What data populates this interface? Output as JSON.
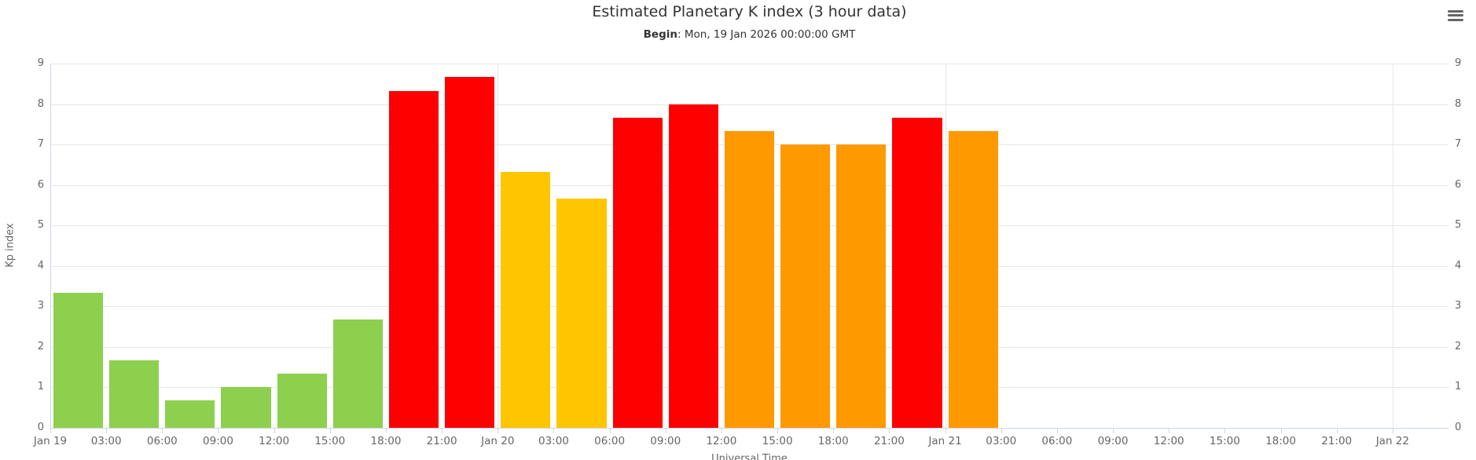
{
  "header": {
    "title": "Estimated Planetary K index (3 hour data)",
    "subtitle_label": "Begin",
    "subtitle_rest": ": Mon, 19 Jan 2026 00:00:00 GMT"
  },
  "menu": {
    "icon": "hamburger-menu-icon"
  },
  "chart_data": {
    "type": "bar",
    "title": "Estimated Planetary K index (3 hour data)",
    "subtitle": "Begin: Mon, 19 Jan 2026 00:00:00 GMT",
    "xlabel": "Universal Time",
    "ylabel": "Kp index",
    "ylim": [
      0,
      9
    ],
    "y_ticks": [
      0,
      1,
      2,
      3,
      4,
      5,
      6,
      7,
      8,
      9
    ],
    "grid": true,
    "legend": false,
    "x_slots_total": 25,
    "x_tick_labels": [
      "Jan 19",
      "03:00",
      "06:00",
      "09:00",
      "12:00",
      "15:00",
      "18:00",
      "21:00",
      "Jan 20",
      "03:00",
      "06:00",
      "09:00",
      "12:00",
      "15:00",
      "18:00",
      "21:00",
      "Jan 21",
      "03:00",
      "06:00",
      "09:00",
      "12:00",
      "15:00",
      "18:00",
      "21:00",
      "Jan 22"
    ],
    "day_boundary_slots": [
      8,
      16,
      24
    ],
    "level_colors": {
      "green": "#8DD04E",
      "yellow": "#FFC600",
      "orange": "#FF9900",
      "red": "#FF0000"
    },
    "bars": [
      {
        "slot": 0,
        "time": "Jan 19 00:00",
        "value": 3.33,
        "level": "green"
      },
      {
        "slot": 1,
        "time": "Jan 19 03:00",
        "value": 1.67,
        "level": "green"
      },
      {
        "slot": 2,
        "time": "Jan 19 06:00",
        "value": 0.67,
        "level": "green"
      },
      {
        "slot": 3,
        "time": "Jan 19 09:00",
        "value": 1.0,
        "level": "green"
      },
      {
        "slot": 4,
        "time": "Jan 19 12:00",
        "value": 1.33,
        "level": "green"
      },
      {
        "slot": 5,
        "time": "Jan 19 15:00",
        "value": 2.67,
        "level": "green"
      },
      {
        "slot": 6,
        "time": "Jan 19 18:00",
        "value": 8.33,
        "level": "red"
      },
      {
        "slot": 7,
        "time": "Jan 19 21:00",
        "value": 8.67,
        "level": "red"
      },
      {
        "slot": 8,
        "time": "Jan 20 00:00",
        "value": 6.33,
        "level": "yellow"
      },
      {
        "slot": 9,
        "time": "Jan 20 03:00",
        "value": 5.67,
        "level": "yellow"
      },
      {
        "slot": 10,
        "time": "Jan 20 06:00",
        "value": 7.67,
        "level": "red"
      },
      {
        "slot": 11,
        "time": "Jan 20 09:00",
        "value": 8.0,
        "level": "red"
      },
      {
        "slot": 12,
        "time": "Jan 20 12:00",
        "value": 7.33,
        "level": "orange"
      },
      {
        "slot": 13,
        "time": "Jan 20 15:00",
        "value": 7.0,
        "level": "orange"
      },
      {
        "slot": 14,
        "time": "Jan 20 18:00",
        "value": 7.0,
        "level": "orange"
      },
      {
        "slot": 15,
        "time": "Jan 20 21:00",
        "value": 7.67,
        "level": "red"
      },
      {
        "slot": 16,
        "time": "Jan 21 00:00",
        "value": 7.33,
        "level": "orange"
      }
    ]
  }
}
